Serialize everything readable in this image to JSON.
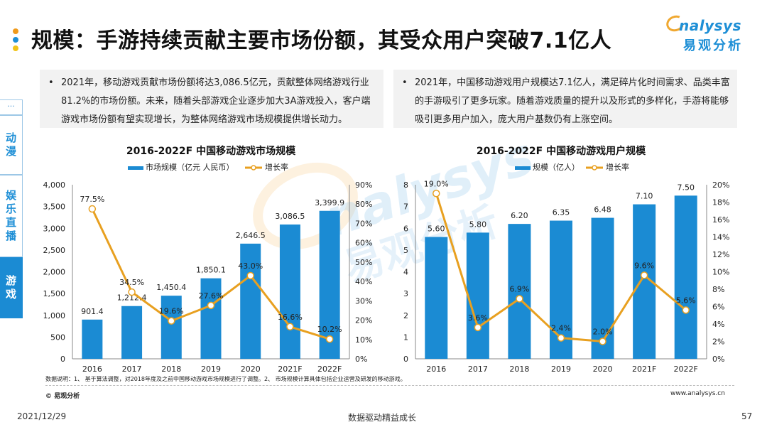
{
  "title_dot_colors": [
    "#f09a1a",
    "#1e8fd6",
    "#f0c419"
  ],
  "page_title": "规模：手游持续贡献主要市场份额，其受众用户突破7.1亿人",
  "logo": {
    "word": "nalysys",
    "cn": "易观分析"
  },
  "notes": {
    "left": {
      "bullet": "•",
      "text": "2021年，移动游戏贡献市场份额将达3,086.5亿元，贡献整体网络游戏行业81.2%的市场份额。未来，随着头部游戏企业逐步加大3A游戏投入，客户端游戏市场份额有望实现增长，为整体网络游戏市场规模提供增长动力。"
    },
    "right": {
      "bullet": "•",
      "text": "2021年，中国移动游戏用户规模达7.1亿人，满足碎片化时间需求、品类丰富的手游吸引了更多玩家。随着游戏质量的提升以及形式的多样化，手游将能够吸引更多用户加入，庞大用户基数仍有上涨空间。"
    }
  },
  "side_nav": {
    "more": "···",
    "items": [
      {
        "label": "动漫",
        "active": false
      },
      {
        "label": "娱乐直播",
        "active": false
      },
      {
        "label": "游戏",
        "active": true
      }
    ]
  },
  "colors": {
    "bar": "#1b8bd3",
    "line": "#e8a020",
    "marker_fill": "#ffffff",
    "axis": "#888888",
    "text": "#222222"
  },
  "chart_data": [
    {
      "type": "bar",
      "title": "2016-2022F 中国移动游戏市场规模",
      "categories": [
        "2016",
        "2017",
        "2018",
        "2019",
        "2020",
        "2021F",
        "2022F"
      ],
      "series": [
        {
          "name": "市场规模（亿元 人民币）",
          "type": "bar",
          "axis": "left",
          "values": [
            901.4,
            1212.4,
            1450.4,
            1850.1,
            2646.5,
            3086.5,
            3399.9
          ],
          "labels": [
            "901.4",
            "1,212.4",
            "1,450.4",
            "1,850.1",
            "2,646.5",
            "3,086.5",
            "3,399.9"
          ]
        },
        {
          "name": "增长率",
          "type": "line",
          "axis": "right",
          "values": [
            77.5,
            34.5,
            19.6,
            27.6,
            43.0,
            16.6,
            10.2
          ],
          "labels": [
            "77.5%",
            "34.5%",
            "19.6%",
            "27.6%",
            "43.0%",
            "16.6%",
            "10.2%"
          ]
        }
      ],
      "y_left": {
        "min": 0,
        "max": 4000,
        "step": 500,
        "ticks": [
          "0",
          "500",
          "1,000",
          "1,500",
          "2,000",
          "2,500",
          "3,000",
          "3,500",
          "4,000"
        ]
      },
      "y_right": {
        "min": 0,
        "max": 90,
        "step": 10,
        "ticks": [
          "0%",
          "10%",
          "20%",
          "30%",
          "40%",
          "50%",
          "60%",
          "70%",
          "80%",
          "90%"
        ]
      },
      "legend": "top-center",
      "grid": false
    },
    {
      "type": "bar",
      "title": "2016-2022F 中国移动游戏用户规模",
      "categories": [
        "2016",
        "2017",
        "2018",
        "2019",
        "2020",
        "2021F",
        "2022F"
      ],
      "series": [
        {
          "name": "规模（亿人）",
          "type": "bar",
          "axis": "left",
          "values": [
            5.6,
            5.8,
            6.2,
            6.35,
            6.48,
            7.1,
            7.5
          ],
          "labels": [
            "5.60",
            "5.80",
            "6.20",
            "6.35",
            "6.48",
            "7.10",
            "7.50"
          ]
        },
        {
          "name": "增长率",
          "type": "line",
          "axis": "right",
          "values": [
            19.0,
            3.6,
            6.9,
            2.4,
            2.0,
            9.6,
            5.6
          ],
          "labels": [
            "19.0%",
            "3.6%",
            "6.9%",
            "2.4%",
            "2.0%",
            "9.6%",
            "5.6%"
          ]
        }
      ],
      "y_left": {
        "min": 0,
        "max": 8,
        "step": 1,
        "ticks": [
          "0",
          "1",
          "2",
          "3",
          "4",
          "5",
          "6",
          "7",
          "8"
        ]
      },
      "y_right": {
        "min": 0,
        "max": 20,
        "step": 2,
        "ticks": [
          "0%",
          "2%",
          "4%",
          "6%",
          "8%",
          "10%",
          "12%",
          "14%",
          "16%",
          "18%",
          "20%"
        ]
      },
      "legend": "top-center",
      "grid": false
    }
  ],
  "footnote": "数据说明：1、 基于算法调整，对2018年度及之前中国移动游戏市场规模进行了调整。2、 市场规模计算具体包括企业运营及研发的移动游戏。",
  "copyright": "© 易观分析",
  "website": "www.analysys.cn",
  "footer": {
    "date": "2021/12/29",
    "center": "数据驱动精益成长",
    "page": "57"
  }
}
